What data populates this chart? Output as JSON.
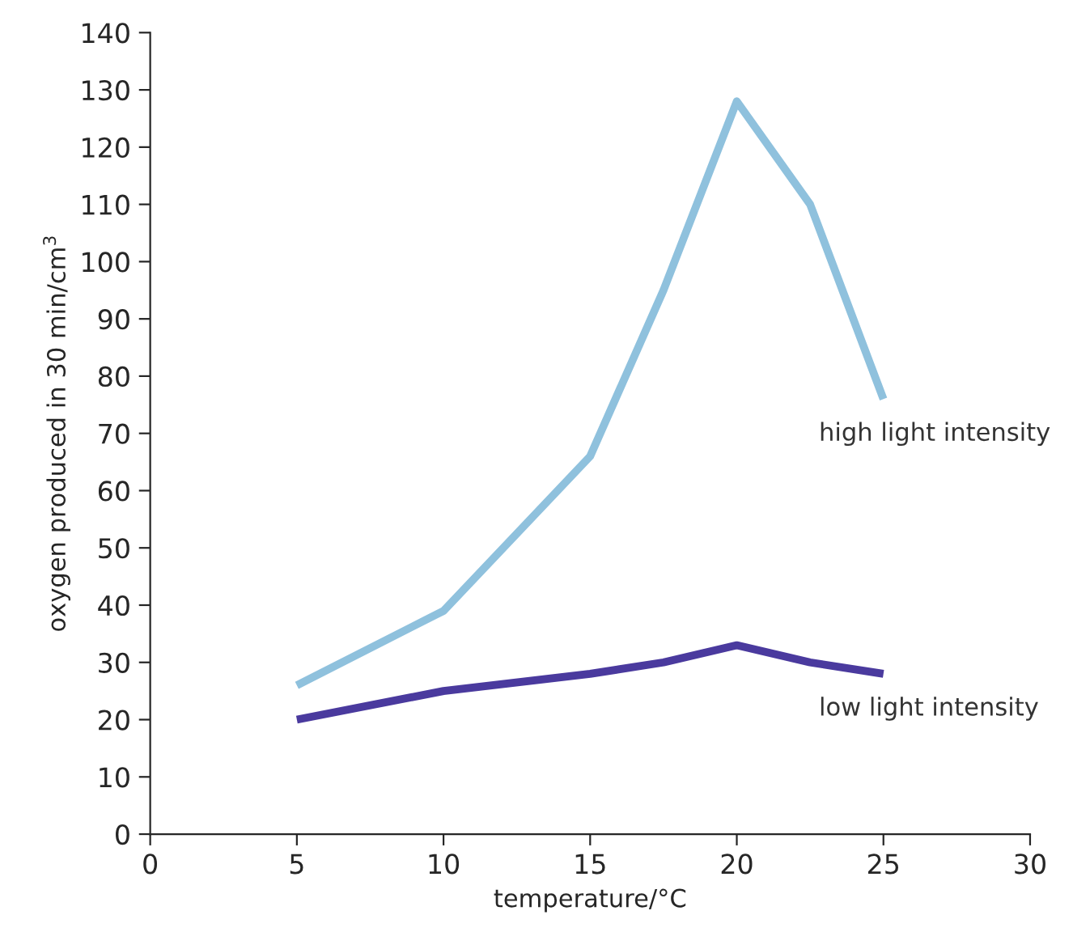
{
  "chart_data": {
    "type": "line",
    "xlabel": "temperature/°C",
    "ylabel": "oxygen produced in 30 min/cm$^{3}$",
    "x": [
      5,
      10,
      15,
      17.5,
      20,
      22.5,
      25
    ],
    "series": [
      {
        "name": "high light intensity",
        "color": "#8fc1dd",
        "values": [
          26,
          39,
          66,
          95,
          128,
          110,
          76
        ]
      },
      {
        "name": "low light intensity",
        "color": "#4a3a9e",
        "values": [
          20,
          25,
          28,
          30,
          33,
          30,
          28
        ]
      }
    ],
    "xlim": [
      0,
      30
    ],
    "xticks": [
      0,
      5,
      10,
      15,
      20,
      25,
      30
    ],
    "ylim": [
      0,
      140
    ],
    "yticks": [
      0,
      10,
      20,
      30,
      40,
      50,
      60,
      70,
      80,
      90,
      100,
      110,
      120,
      130,
      140
    ],
    "grid": false,
    "legend": false,
    "marker": "none",
    "line_style": "solid"
  }
}
